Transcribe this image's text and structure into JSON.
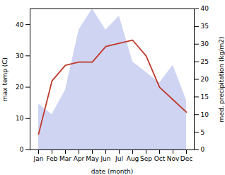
{
  "chart_data": {
    "type": "line",
    "categories": [
      "Jan",
      "Feb",
      "Mar",
      "Apr",
      "May",
      "Jun",
      "Jul",
      "Aug",
      "Sep",
      "Oct",
      "Nov",
      "Dec"
    ],
    "series": [
      {
        "type": "area",
        "axis": "y2",
        "color": "#c5cdf0",
        "values": [
          13,
          10,
          17,
          34,
          40,
          34,
          38,
          25,
          22,
          19,
          24,
          14
        ]
      },
      {
        "type": "line",
        "color": "#c0392b",
        "values": [
          5,
          22,
          27,
          28,
          28,
          33,
          34,
          35,
          30,
          20,
          16,
          12
        ]
      }
    ],
    "xlabel": "date (month)",
    "ylabel": "max temp (C)",
    "y2label": "med. precipitation (kg/m2)",
    "ylim": [
      0,
      45
    ],
    "yticks": [
      0,
      10,
      20,
      30,
      40
    ],
    "y2lim": [
      0,
      40
    ],
    "y2ticks": [
      0,
      5,
      10,
      15,
      20,
      25,
      30,
      35,
      40
    ],
    "grid": false
  }
}
